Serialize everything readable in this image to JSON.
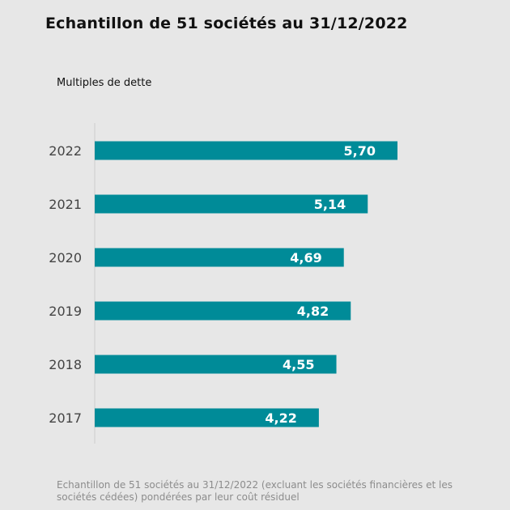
{
  "title": "Echantillon de 51 sociétés au 31/12/2022",
  "subtitle": "Multiples de dette",
  "footnote": "Echantillon de 51 sociétés au 31/12/2022 (excluant les sociétés financières et les sociétés cédées) pondérées par leur coût résiduel",
  "colors": {
    "bar": "#008b98",
    "bar_label": "#ffffff",
    "tick_label": "#444444",
    "axis_line": "#cccccc"
  },
  "chart_data": {
    "type": "bar",
    "orientation": "horizontal",
    "title": "Echantillon de 51 sociétés au 31/12/2022",
    "ylabel": "Multiples de dette",
    "xlim": [
      0,
      6.5
    ],
    "grid": false,
    "legend": "none",
    "categories": [
      "2022",
      "2021",
      "2020",
      "2019",
      "2018",
      "2017"
    ],
    "values": [
      5.7,
      5.14,
      4.69,
      4.82,
      4.55,
      4.22
    ],
    "value_labels": [
      "5,70",
      "5,14",
      "4,69",
      "4,82",
      "4,55",
      "4,22"
    ]
  }
}
